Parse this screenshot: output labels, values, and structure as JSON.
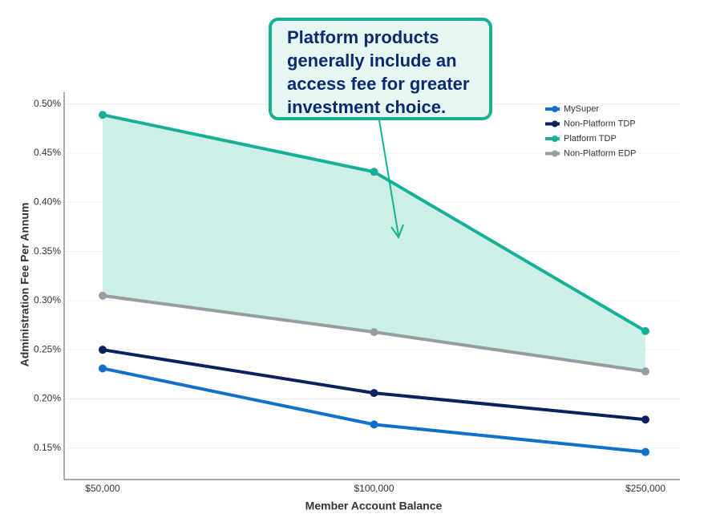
{
  "chart_data": {
    "type": "line",
    "annotation": "Platform products generally include an access fee for greater investment choice.",
    "x_label": "Member Account Balance",
    "y_label": "Administration Fee Per Annum",
    "categories": [
      "$50,000",
      "$100,000",
      "$250,000"
    ],
    "series": [
      {
        "name": "MySuper",
        "color": "#1170cc",
        "values": [
          0.231,
          0.174,
          0.146
        ]
      },
      {
        "name": "Non-Platform TDP",
        "color": "#0b2260",
        "values": [
          0.25,
          0.206,
          0.179
        ]
      },
      {
        "name": "Platform TDP",
        "color": "#16b195",
        "values": [
          0.489,
          0.431,
          0.269
        ]
      },
      {
        "name": "Non-Platform EDP",
        "color": "#969ca3",
        "values": [
          0.305,
          0.268,
          0.228
        ]
      }
    ],
    "fill_between": [
      2,
      3
    ],
    "fill_color": "#cdefe7",
    "ylim": [
      0.118,
      0.512
    ],
    "yticks": [
      {
        "value": 0.15,
        "label": "0.15%"
      },
      {
        "value": 0.2,
        "label": "0.20%"
      },
      {
        "value": 0.25,
        "label": "0.25%"
      },
      {
        "value": 0.3,
        "label": "0.30%"
      },
      {
        "value": 0.35,
        "label": "0.35%"
      },
      {
        "value": 0.4,
        "label": "0.40%"
      },
      {
        "value": 0.45,
        "label": "0.45%"
      },
      {
        "value": 0.5,
        "label": "0.50%"
      }
    ],
    "grid": true,
    "legend": "upper right"
  }
}
